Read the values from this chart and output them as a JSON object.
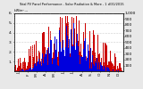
{
  "title": "Total PV Panel Performance - Solar Radiation & More - 1 d/31/2015",
  "subtitle": "kW/m² ---",
  "bg_color": "#e8e8e8",
  "plot_bg": "#ffffff",
  "red_color": "#cc0000",
  "blue_color": "#0000dd",
  "num_points": 365,
  "ylim_left": [
    0,
    6
  ],
  "ylim_right": [
    0,
    1000
  ],
  "yticks_right": [
    100,
    200,
    300,
    400,
    500,
    600,
    700,
    800,
    900,
    1000
  ],
  "ytick_labels_right": [
    "100",
    "200",
    "300",
    "400",
    "500",
    "600",
    "700",
    "800",
    "900",
    "1,000"
  ],
  "yticks_left": [
    1,
    2,
    3,
    4,
    5,
    6
  ],
  "ytick_labels_left": [
    "1.",
    "2.",
    "3.",
    "4.",
    "5.",
    "6."
  ]
}
